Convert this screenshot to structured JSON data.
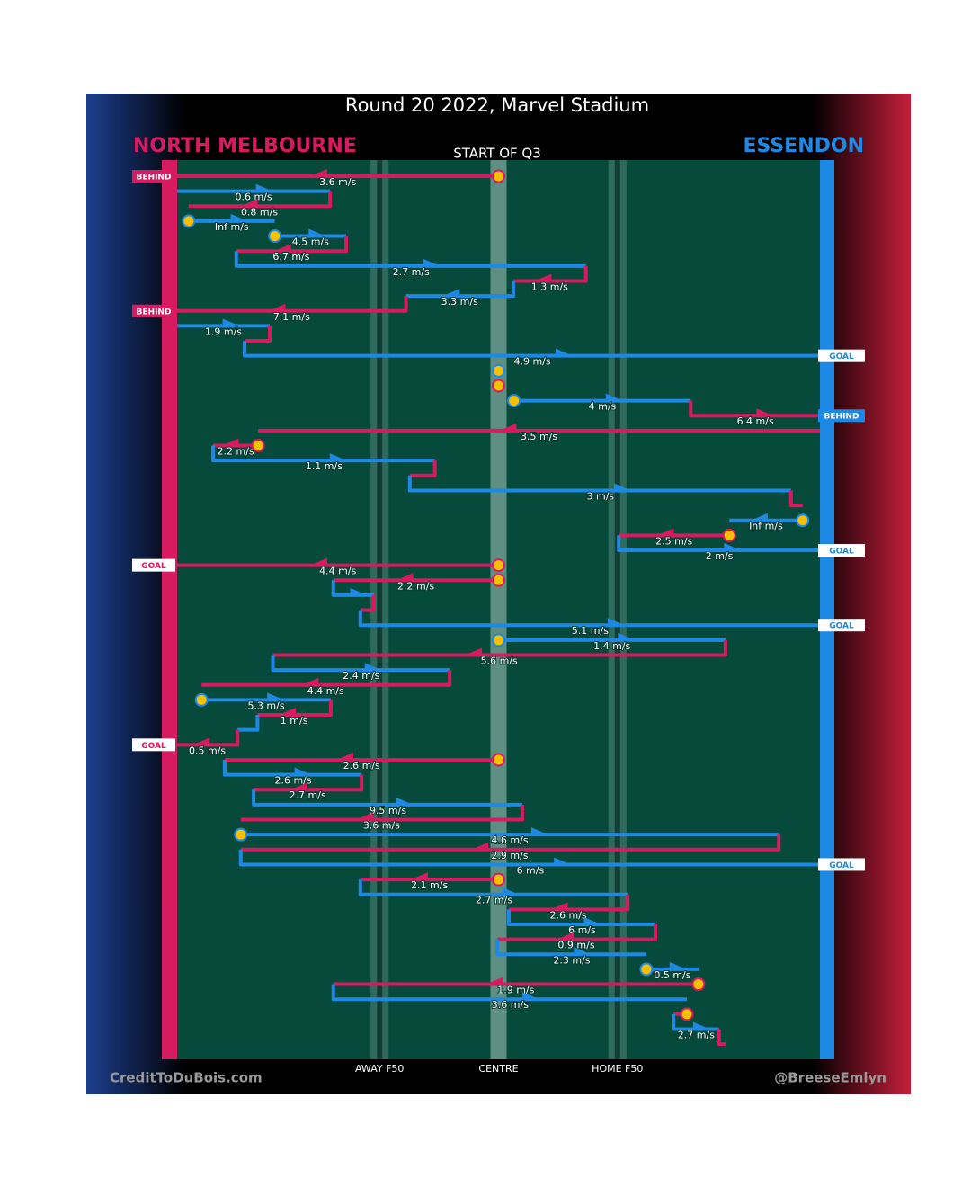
{
  "chart_data": {
    "type": "possession-chain",
    "title": "Round 20 2022, Marvel Stadium",
    "subtitle": "START OF Q3",
    "credit_left": "CreditToDuBois.com",
    "credit_right": "@BreeseEmlyn",
    "teams": [
      {
        "name": "NORTH MELBOURNE",
        "color": "#d81b60"
      },
      {
        "name": "ESSENDON",
        "color": "#1e88e5"
      }
    ],
    "xlim": [
      0,
      100
    ],
    "xticks": [
      {
        "value": 31.5,
        "label": "AWAY F50"
      },
      {
        "value": 50,
        "label": "CENTRE"
      },
      {
        "value": 68.5,
        "label": "HOME F50"
      }
    ],
    "segments": [
      {
        "team": 0,
        "x1": 50,
        "x2": 0,
        "speed": 3.6,
        "speed_label": "3.6 m/s",
        "marker": true,
        "outcome": "BEHIND"
      },
      {
        "team": 1,
        "x1": 0,
        "x2": 23.8,
        "speed": 0.6,
        "speed_label": "0.6 m/s"
      },
      {
        "team": 0,
        "x1": 23.8,
        "x2": 1.8,
        "speed": 0.8,
        "speed_label": "0.8 m/s"
      },
      {
        "team": 1,
        "x1": 1.8,
        "x2": 15.2,
        "speed_label": "Inf m/s",
        "marker": true
      },
      {
        "team": 1,
        "x1": 15.2,
        "x2": 26.3,
        "speed": 4.5,
        "speed_label": "4.5 m/s",
        "marker": true
      },
      {
        "team": 0,
        "x1": 26.3,
        "x2": 9.2,
        "speed": 6.7,
        "speed_label": "6.7 m/s"
      },
      {
        "team": 1,
        "x1": 9.2,
        "x2": 63.6,
        "speed": 2.7,
        "speed_label": "2.7 m/s"
      },
      {
        "team": 0,
        "x1": 63.6,
        "x2": 52.3,
        "speed": 1.3,
        "speed_label": "1.3 m/s"
      },
      {
        "team": 1,
        "x1": 52.3,
        "x2": 35.6,
        "speed": 3.3,
        "speed_label": "3.3 m/s"
      },
      {
        "team": 0,
        "x1": 35.6,
        "x2": 0,
        "speed": 7.1,
        "speed_label": "7.1 m/s",
        "outcome": "BEHIND"
      },
      {
        "team": 1,
        "x1": 0,
        "x2": 14.4,
        "speed": 1.9,
        "speed_label": "1.9 m/s"
      },
      {
        "team": 0,
        "x1": 14.4,
        "x2": 10.5,
        "speed": null
      },
      {
        "team": 1,
        "x1": 10.5,
        "x2": 100,
        "speed": 4.9,
        "speed_label": "4.9 m/s",
        "outcome": "GOAL"
      },
      {
        "team": 1,
        "x1": 50,
        "x2": 50,
        "marker": true
      },
      {
        "team": 0,
        "x1": 50,
        "x2": 50,
        "marker": true
      },
      {
        "team": 1,
        "x1": 52.4,
        "x2": 79.9,
        "speed": 4,
        "speed_label": "4 m/s",
        "marker": true
      },
      {
        "team": 0,
        "x1": 79.9,
        "x2": 100,
        "speed": 6.4,
        "speed_label": "6.4 m/s",
        "outcome": "BEHIND"
      },
      {
        "team": 0,
        "x1": 100,
        "x2": 12.6,
        "speed": 3.5,
        "speed_label": "3.5 m/s"
      },
      {
        "team": 0,
        "x1": 12.6,
        "x2": 5.6,
        "speed": 2.2,
        "speed_label": "2.2 m/s",
        "marker": true
      },
      {
        "team": 1,
        "x1": 5.6,
        "x2": 40.1,
        "speed": 1.1,
        "speed_label": "1.1 m/s"
      },
      {
        "team": 0,
        "x1": 40.1,
        "x2": 36.2,
        "speed": null
      },
      {
        "team": 1,
        "x1": 36.2,
        "x2": 95.5,
        "speed": 3,
        "speed_label": "3 m/s"
      },
      {
        "team": 0,
        "x1": 95.5,
        "x2": 97.3
      },
      {
        "team": 1,
        "x1": 97.3,
        "x2": 85.9,
        "speed_label": "Inf m/s",
        "marker": true
      },
      {
        "team": 0,
        "x1": 85.9,
        "x2": 68.7,
        "speed": 2.5,
        "speed_label": "2.5 m/s",
        "marker": true
      },
      {
        "team": 1,
        "x1": 68.7,
        "x2": 100,
        "speed": 2,
        "speed_label": "2 m/s",
        "outcome": "GOAL"
      },
      {
        "team": 0,
        "x1": 50,
        "x2": 0,
        "speed": 4.4,
        "speed_label": "4.4 m/s",
        "marker": true,
        "outcome": "GOAL"
      },
      {
        "team": 0,
        "x1": 50,
        "x2": 24.3,
        "speed": 2.2,
        "speed_label": "2.2 m/s",
        "marker": true
      },
      {
        "team": 1,
        "x1": 24.3,
        "x2": 30.6
      },
      {
        "team": 0,
        "x1": 30.6,
        "x2": 28.5
      },
      {
        "team": 1,
        "x1": 28.5,
        "x2": 100,
        "speed": 5.1,
        "speed_label": "5.1 m/s",
        "outcome": "GOAL"
      },
      {
        "team": 1,
        "x1": 50,
        "x2": 85.3,
        "speed": 1.4,
        "speed_label": "1.4 m/s",
        "marker": true
      },
      {
        "team": 0,
        "x1": 85.3,
        "x2": 14.9,
        "speed": 5.6,
        "speed_label": "5.6 m/s"
      },
      {
        "team": 1,
        "x1": 14.9,
        "x2": 42.4,
        "speed": 2.4,
        "speed_label": "2.4 m/s"
      },
      {
        "team": 0,
        "x1": 42.4,
        "x2": 3.8,
        "speed": 4.4,
        "speed_label": "4.4 m/s"
      },
      {
        "team": 1,
        "x1": 3.8,
        "x2": 23.9,
        "speed": 5.3,
        "speed_label": "5.3 m/s",
        "marker": true
      },
      {
        "team": 0,
        "x1": 23.9,
        "x2": 12.5,
        "speed": 1,
        "speed_label": "1 m/s"
      },
      {
        "team": 1,
        "x1": 12.5,
        "x2": 9.4
      },
      {
        "team": 0,
        "x1": 9.4,
        "x2": 0,
        "speed": 0.5,
        "speed_label": "0.5 m/s",
        "outcome": "GOAL"
      },
      {
        "team": 0,
        "x1": 50,
        "x2": 7.4,
        "speed": 2.6,
        "speed_label": "2.6 m/s",
        "marker": true
      },
      {
        "team": 1,
        "x1": 7.4,
        "x2": 28.7,
        "speed": 2.6,
        "speed_label": "2.6 m/s"
      },
      {
        "team": 0,
        "x1": 28.7,
        "x2": 11.9,
        "speed": 2.7,
        "speed_label": "2.7 m/s"
      },
      {
        "team": 1,
        "x1": 11.9,
        "x2": 53.7,
        "speed": 9.5,
        "speed_label": "9.5 m/s"
      },
      {
        "team": 0,
        "x1": 53.7,
        "x2": 9.9,
        "speed": 3.6,
        "speed_label": "3.6 m/s"
      },
      {
        "team": 1,
        "x1": 9.9,
        "x2": 93.6,
        "speed": 4.6,
        "speed_label": "4.6 m/s",
        "marker": true
      },
      {
        "team": 0,
        "x1": 93.6,
        "x2": 9.9,
        "speed": 2.9,
        "speed_label": "2.9 m/s"
      },
      {
        "team": 1,
        "x1": 9.9,
        "x2": 100,
        "speed": 6,
        "speed_label": "6 m/s",
        "outcome": "GOAL"
      },
      {
        "team": 0,
        "x1": 50,
        "x2": 28.5,
        "speed": 2.1,
        "speed_label": "2.1 m/s",
        "marker": true
      },
      {
        "team": 1,
        "x1": 28.5,
        "x2": 70.1,
        "speed": 2.7,
        "speed_label": "2.7 m/s"
      },
      {
        "team": 0,
        "x1": 70.1,
        "x2": 51.6,
        "speed": 2.6,
        "speed_label": "2.6 m/s"
      },
      {
        "team": 1,
        "x1": 51.6,
        "x2": 74.4,
        "speed": 6,
        "speed_label": "6 m/s"
      },
      {
        "team": 0,
        "x1": 74.4,
        "x2": 49.8,
        "speed": 0.9,
        "speed_label": "0.9 m/s"
      },
      {
        "team": 1,
        "x1": 49.8,
        "x2": 73,
        "speed": 2.3,
        "speed_label": "2.3 m/s"
      },
      {
        "team": 1,
        "x1": 73,
        "x2": 81.1,
        "speed": 0.5,
        "speed_label": "0.5 m/s",
        "marker": true
      },
      {
        "team": 0,
        "x1": 81.1,
        "x2": 24.3,
        "speed": 1.9,
        "speed_label": "1.9 m/s",
        "marker": true
      },
      {
        "team": 1,
        "x1": 24.3,
        "x2": 79.3,
        "speed": 3.6,
        "speed_label": "3.6 m/s"
      },
      {
        "team": 0,
        "x1": 79.3,
        "x2": 77.2,
        "marker": true
      },
      {
        "team": 1,
        "x1": 77.2,
        "x2": 84.3,
        "speed": 2.7,
        "speed_label": "2.7 m/s"
      },
      {
        "team": 0,
        "x1": 84.3,
        "x2": 85.3
      }
    ]
  }
}
